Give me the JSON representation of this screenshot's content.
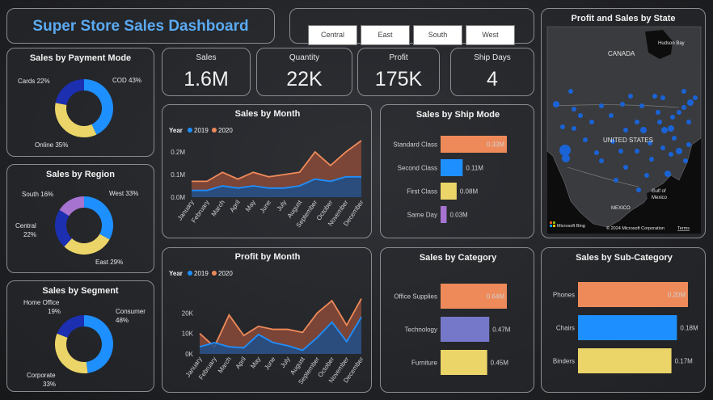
{
  "header": {
    "title": "Super Store Sales Dashboard"
  },
  "slicer": {
    "options": [
      "Central",
      "East",
      "South",
      "West"
    ]
  },
  "kpis": [
    {
      "label": "Sales",
      "value": "1.6M"
    },
    {
      "label": "Quantity",
      "value": "22K"
    },
    {
      "label": "Profit",
      "value": "175K"
    },
    {
      "label": "Ship Days",
      "value": "4"
    }
  ],
  "colors": {
    "blue": "#1e8fff",
    "darkblue": "#1b2fb0",
    "yellow": "#ecd568",
    "orange": "#ee8a5a",
    "purple": "#a773d1",
    "slate": "#7578c8"
  },
  "payment": {
    "title": "Sales by Payment Mode",
    "labels": [
      "COD 43%",
      "Online 35%",
      "Cards 22%"
    ]
  },
  "region": {
    "title": "Sales by Region",
    "labels": [
      "West 33%",
      "East 29%",
      "Central",
      "22%",
      "South 16%"
    ]
  },
  "segment": {
    "title": "Sales by Segment",
    "labels": [
      "Consumer",
      "48%",
      "Corporate",
      "33%",
      "Home Office",
      "19%"
    ]
  },
  "map": {
    "title": "Profit and Sales by State",
    "labels": [
      "CANADA",
      "UNITED STATES",
      "MEXICO",
      "Hudson Bay",
      "Gulf of",
      "Mexico",
      "Microsoft Bing",
      "© 2024 Microsoft Corporation",
      "Terms"
    ]
  },
  "legend": {
    "title": "Year",
    "y2019": "2019",
    "y2020": "2020"
  },
  "chart_data": [
    {
      "type": "pie",
      "title": "Sales by Payment Mode",
      "categories": [
        "COD",
        "Online",
        "Cards"
      ],
      "values": [
        43,
        35,
        22
      ]
    },
    {
      "type": "pie",
      "title": "Sales by Region",
      "categories": [
        "West",
        "East",
        "Central",
        "South"
      ],
      "values": [
        33,
        29,
        22,
        16
      ]
    },
    {
      "type": "pie",
      "title": "Sales by Segment",
      "categories": [
        "Consumer",
        "Corporate",
        "Home Office"
      ],
      "values": [
        48,
        33,
        19
      ]
    },
    {
      "type": "area",
      "title": "Sales by Month",
      "categories": [
        "January",
        "February",
        "March",
        "April",
        "May",
        "June",
        "July",
        "August",
        "September",
        "October",
        "November",
        "December"
      ],
      "series": [
        {
          "name": "2019",
          "values": [
            0.03,
            0.03,
            0.05,
            0.04,
            0.05,
            0.04,
            0.04,
            0.05,
            0.08,
            0.07,
            0.09,
            0.09
          ]
        },
        {
          "name": "2020",
          "values": [
            0.07,
            0.07,
            0.11,
            0.08,
            0.11,
            0.09,
            0.1,
            0.11,
            0.2,
            0.14,
            0.2,
            0.25
          ]
        }
      ],
      "yticks": [
        "0.0M",
        "0.1M",
        "0.2M"
      ],
      "ylim": [
        0,
        0.25
      ]
    },
    {
      "type": "area",
      "title": "Profit by Month",
      "categories": [
        "January",
        "February",
        "March",
        "April",
        "May",
        "June",
        "July",
        "August",
        "September",
        "October",
        "November",
        "December"
      ],
      "series": [
        {
          "name": "2019",
          "values": [
            3500,
            5500,
            3500,
            3000,
            9500,
            5500,
            4000,
            1800,
            8000,
            15500,
            6000,
            18000
          ]
        },
        {
          "name": "2020",
          "values": [
            10000,
            3500,
            19000,
            9000,
            13500,
            12000,
            12000,
            10500,
            20000,
            26000,
            14000,
            27000
          ]
        }
      ],
      "yticks": [
        "0K",
        "10K",
        "20K"
      ],
      "ylim": [
        0,
        28000
      ]
    },
    {
      "type": "bar",
      "title": "Sales by Ship Mode",
      "categories": [
        "Standard Class",
        "Second Class",
        "First Class",
        "Same Day"
      ],
      "values": [
        0.33,
        0.11,
        0.08,
        0.03
      ],
      "labels": [
        "0.33M",
        "0.11M",
        "0.08M",
        "0.03M"
      ]
    },
    {
      "type": "bar",
      "title": "Sales by Category",
      "categories": [
        "Office Supplies",
        "Technology",
        "Furniture"
      ],
      "values": [
        0.64,
        0.47,
        0.45
      ],
      "labels": [
        "0.64M",
        "0.47M",
        "0.45M"
      ]
    },
    {
      "type": "bar",
      "title": "Sales by Sub-Category",
      "categories": [
        "Phones",
        "Chairs",
        "Binders"
      ],
      "values": [
        0.2,
        0.18,
        0.17
      ],
      "labels": [
        "0.20M",
        "0.18M",
        "0.17M"
      ]
    }
  ]
}
